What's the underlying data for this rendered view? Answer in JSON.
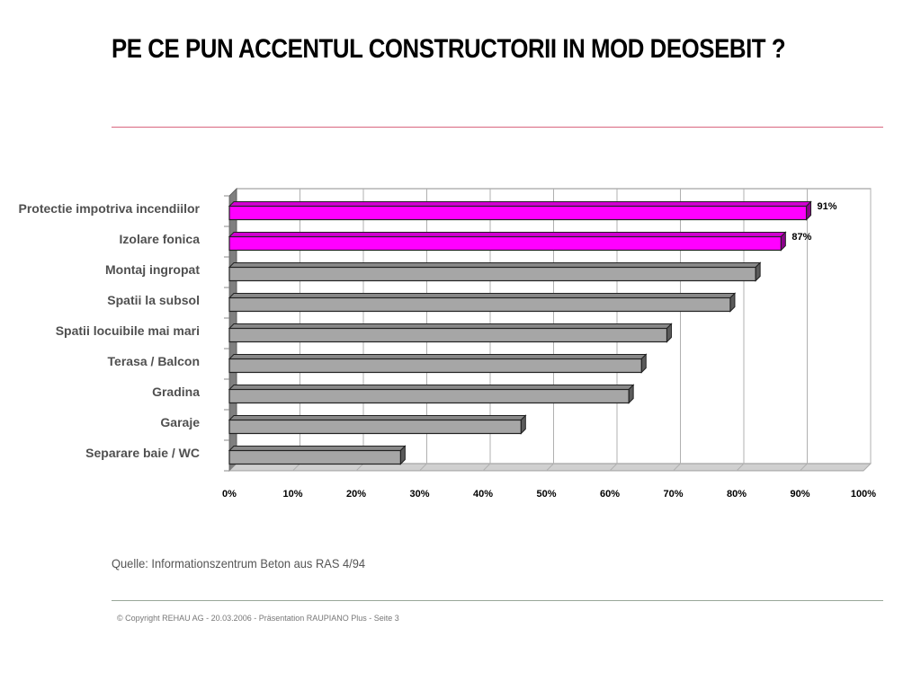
{
  "title": "PE CE PUN ACCENTUL CONSTRUCTORII IN MOD DEOSEBIT ?",
  "source": "Quelle: Informationszentrum Beton aus RAS 4/94",
  "footer": "© Copyright REHAU AG  -  20.03.2006 - Präsentation RAUPIANO Plus - Seite 3",
  "colors": {
    "highlight": "#ff00ff",
    "bar": "#a6a6a6",
    "title_rule": "#d9667f",
    "footer_rule": "#9aa79a"
  },
  "chart_data": {
    "type": "bar",
    "orientation": "horizontal",
    "categories": [
      "Protectie impotriva incendiilor",
      "Izolare fonica",
      "Montaj ingropat",
      "Spatii la subsol",
      "Spatii locuibile mai mari",
      "Terasa / Balcon",
      "Gradina",
      "Garaje",
      "Separare baie / WC"
    ],
    "values": [
      91,
      87,
      83,
      79,
      69,
      65,
      63,
      46,
      27
    ],
    "data_labels": [
      "91%",
      "87%",
      "",
      "",
      "",
      "",
      "",
      "",
      ""
    ],
    "highlighted": [
      true,
      true,
      false,
      false,
      false,
      false,
      false,
      false,
      false
    ],
    "xlim": [
      0,
      100
    ],
    "xticks": [
      "0%",
      "10%",
      "20%",
      "30%",
      "40%",
      "50%",
      "60%",
      "70%",
      "80%",
      "90%",
      "100%"
    ],
    "grid": true,
    "legend": "none"
  }
}
